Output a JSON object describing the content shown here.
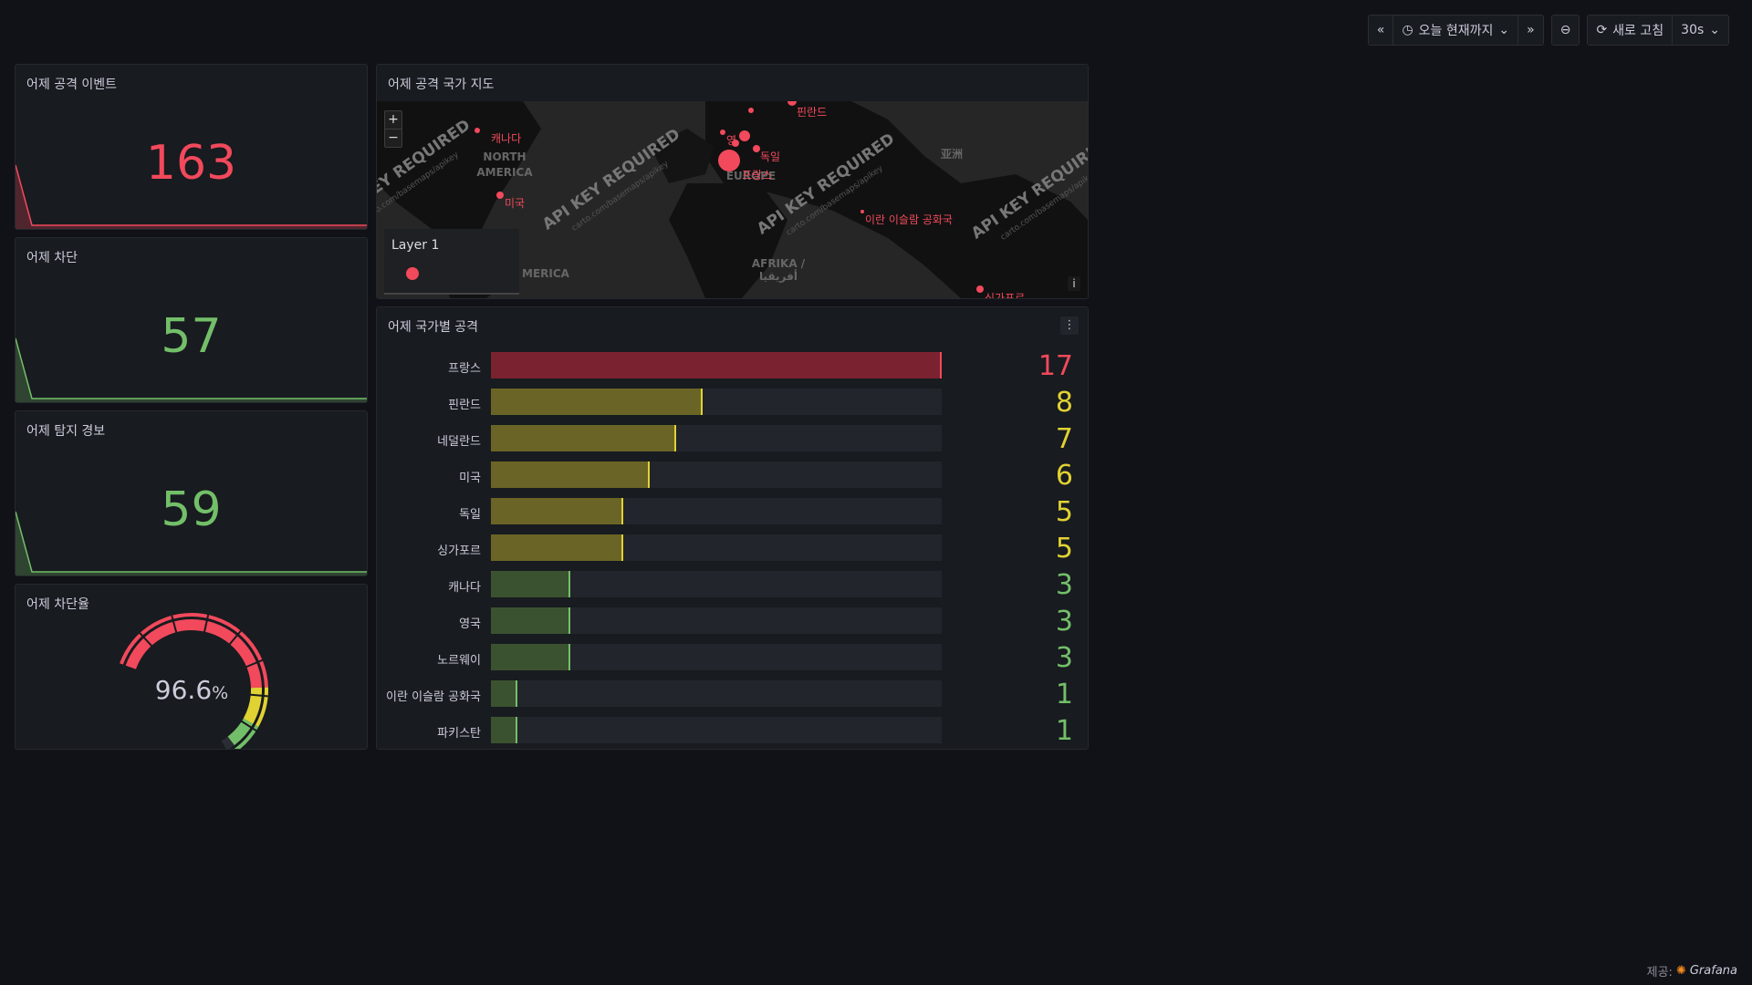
{
  "toolbar": {
    "time_range": "오늘 현재까지",
    "refresh_label": "새로 고침",
    "refresh_interval": "30s"
  },
  "panels": {
    "attack_events": {
      "title": "어제 공격 이벤트",
      "value": "163",
      "color": "#f2495c"
    },
    "blocked": {
      "title": "어제 차단",
      "value": "57",
      "color": "#73bf69"
    },
    "detect_alerts": {
      "title": "어제 탐지 경보",
      "value": "59",
      "color": "#73bf69"
    },
    "block_rate": {
      "title": "어제 차단율",
      "value": "96.6",
      "unit": "%",
      "fraction": 0.966
    },
    "attack_map": {
      "title": "어제 공격 국가 지도",
      "layer_label": "Layer 1",
      "watermark": "API KEY REQUIRED",
      "watermark_sub": "carto.com/basemaps/apikey",
      "markers": [
        {
          "label": "캐나다"
        },
        {
          "label": "미국"
        },
        {
          "label": "핀란드"
        },
        {
          "label": "영"
        },
        {
          "label": "독일"
        },
        {
          "label": "프랑스"
        },
        {
          "label": "이란 이슬람 공화국"
        },
        {
          "label": "싱가포르"
        }
      ],
      "regions": [
        "NORTH",
        "AMERICA",
        "AFRIKA /",
        "أفريقيا",
        "亚洲",
        "MERICA",
        "EUROPE"
      ]
    },
    "country_attacks": {
      "title": "어제 국가별 공격",
      "max": 17,
      "rows": [
        {
          "label": "프랑스",
          "value": 17,
          "level": "red"
        },
        {
          "label": "핀란드",
          "value": 8,
          "level": "yellow"
        },
        {
          "label": "네덜란드",
          "value": 7,
          "level": "yellow"
        },
        {
          "label": "미국",
          "value": 6,
          "level": "yellow"
        },
        {
          "label": "독일",
          "value": 5,
          "level": "yellow"
        },
        {
          "label": "싱가포르",
          "value": 5,
          "level": "yellow"
        },
        {
          "label": "캐나다",
          "value": 3,
          "level": "green"
        },
        {
          "label": "영국",
          "value": 3,
          "level": "green"
        },
        {
          "label": "노르웨이",
          "value": 3,
          "level": "green"
        },
        {
          "label": "이란 이슬람 공화국",
          "value": 1,
          "level": "green"
        },
        {
          "label": "파키스탄",
          "value": 1,
          "level": "green"
        }
      ]
    }
  },
  "colors": {
    "red": "#f2495c",
    "red_fill": "#7a2230",
    "yellow": "#e0d233",
    "yellow_fill": "#6a6526",
    "green": "#73bf69",
    "green_fill": "#3b5230"
  },
  "footer": {
    "prefix": "제공:",
    "brand": "Grafana"
  }
}
